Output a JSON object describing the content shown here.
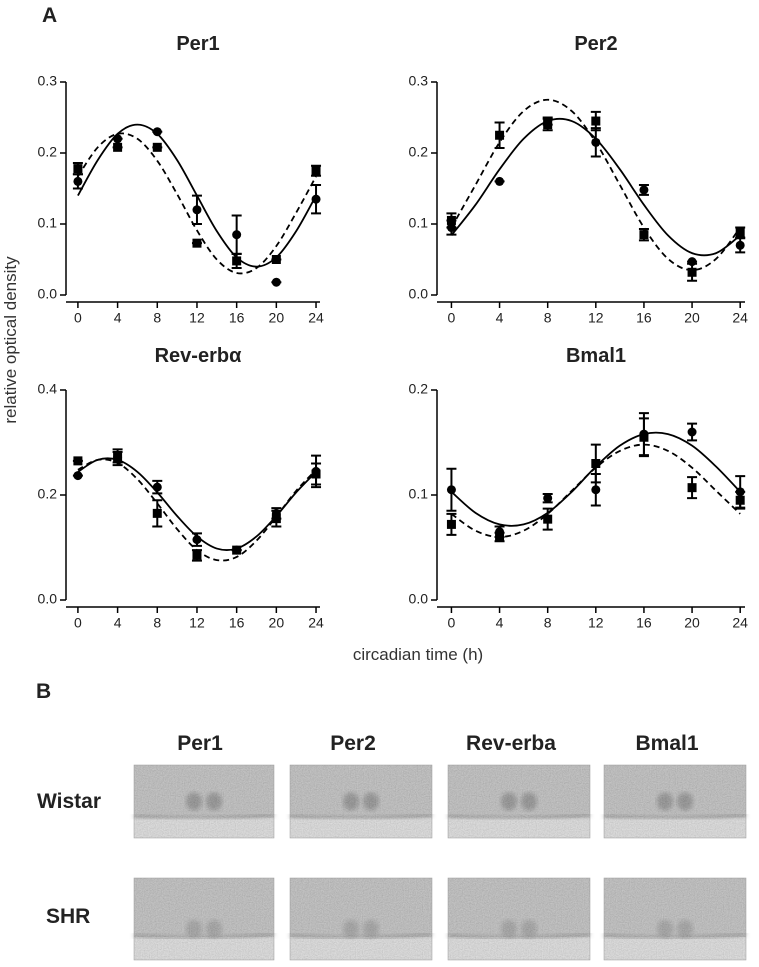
{
  "panel_a": {
    "label": "A",
    "ylabel": "relative optical density",
    "xlabel": "circadian time (h)"
  },
  "chart_data": [
    {
      "type": "scatter",
      "title": "Per1",
      "x": [
        0,
        4,
        8,
        12,
        16,
        20,
        24
      ],
      "xlim": [
        -1.2,
        24.4
      ],
      "xticks": [
        0,
        4,
        8,
        12,
        16,
        20,
        24
      ],
      "ylim": [
        0,
        0.3
      ],
      "yticks": [
        {
          "value": 0,
          "label": "0.0"
        },
        0.1,
        0.2,
        0.3
      ],
      "series": [
        {
          "marker": "circle",
          "color": "#000000",
          "values": [
            0.16,
            0.22,
            0.23,
            0.12,
            0.085,
            0.018,
            0.135
          ],
          "errors": [
            0.01,
            0,
            0,
            0.02,
            0.027,
            0,
            0.02
          ]
        },
        {
          "marker": "square",
          "color": "#000000",
          "values": [
            0.178,
            0.208,
            0.208,
            0.073,
            0.048,
            0.05,
            0.175
          ],
          "errors": [
            0.008,
            0,
            0,
            0,
            0.01,
            0,
            0.007
          ]
        }
      ],
      "fits": [
        {
          "dash": false,
          "color": "#000000",
          "x": [
            0,
            2,
            4,
            6,
            8,
            10,
            12,
            14,
            16,
            18,
            20,
            22,
            24
          ],
          "values": [
            0.14,
            0.19,
            0.227,
            0.24,
            0.227,
            0.19,
            0.14,
            0.09,
            0.053,
            0.04,
            0.053,
            0.09,
            0.14
          ]
        },
        {
          "dash": true,
          "color": "#000000",
          "x": [
            0,
            2,
            4,
            6,
            8,
            10,
            12,
            14,
            16,
            18,
            20,
            22,
            24
          ],
          "values": [
            0.167,
            0.208,
            0.227,
            0.22,
            0.189,
            0.142,
            0.091,
            0.05,
            0.031,
            0.038,
            0.069,
            0.116,
            0.167
          ]
        }
      ]
    },
    {
      "type": "scatter",
      "title": "Per2",
      "x": [
        0,
        4,
        8,
        12,
        16,
        20,
        24
      ],
      "xlim": [
        -1.2,
        24.4
      ],
      "xticks": [
        0,
        4,
        8,
        12,
        16,
        20,
        24
      ],
      "ylim": [
        0,
        0.3
      ],
      "yticks": [
        {
          "value": 0,
          "label": "0.0"
        },
        0.1,
        0.2,
        0.3
      ],
      "series": [
        {
          "marker": "circle",
          "color": "#000000",
          "values": [
            0.095,
            0.16,
            0.245,
            0.215,
            0.148,
            0.047,
            0.07
          ],
          "errors": [
            0.01,
            0,
            0.005,
            0.02,
            0.007,
            0,
            0.01
          ]
        },
        {
          "marker": "square",
          "color": "#000000",
          "values": [
            0.105,
            0.225,
            0.24,
            0.245,
            0.085,
            0.032,
            0.088
          ],
          "errors": [
            0.01,
            0.018,
            0.008,
            0.013,
            0.008,
            0.012,
            0.007
          ]
        }
      ],
      "fits": [
        {
          "dash": false,
          "color": "#000000",
          "x": [
            0,
            2,
            4,
            6,
            8,
            10,
            12,
            14,
            16,
            18,
            20,
            22,
            24
          ],
          "values": [
            0.084,
            0.127,
            0.177,
            0.22,
            0.245,
            0.245,
            0.22,
            0.177,
            0.127,
            0.084,
            0.059,
            0.059,
            0.084
          ]
        },
        {
          "dash": true,
          "color": "#000000",
          "x": [
            0,
            2,
            4,
            6,
            8,
            10,
            12,
            14,
            16,
            18,
            20,
            22,
            24
          ],
          "values": [
            0.095,
            0.155,
            0.215,
            0.259,
            0.275,
            0.259,
            0.215,
            0.155,
            0.095,
            0.051,
            0.035,
            0.051,
            0.095
          ]
        }
      ]
    },
    {
      "type": "scatter",
      "title": "Rev-erbα",
      "x": [
        0,
        4,
        8,
        12,
        16,
        20,
        24
      ],
      "xlim": [
        -1.2,
        24.4
      ],
      "xticks": [
        0,
        4,
        8,
        12,
        16,
        20,
        24
      ],
      "ylim": [
        0,
        0.4
      ],
      "yticks": [
        {
          "value": 0,
          "label": "0.0"
        },
        0.2,
        0.4
      ],
      "series": [
        {
          "marker": "circle",
          "color": "#000000",
          "values": [
            0.237,
            0.272,
            0.215,
            0.115,
            0.095,
            0.165,
            0.245
          ],
          "errors": [
            0,
            0.015,
            0.012,
            0.012,
            0,
            0.01,
            0.03
          ]
        },
        {
          "marker": "square",
          "color": "#000000",
          "values": [
            0.265,
            0.272,
            0.165,
            0.085,
            0.095,
            0.155,
            0.24
          ],
          "errors": [
            0,
            0.01,
            0.025,
            0.01,
            0,
            0.015,
            0.02
          ]
        }
      ],
      "fits": [
        {
          "dash": false,
          "color": "#000000",
          "x": [
            0,
            2,
            4,
            6,
            8,
            10,
            12,
            14,
            16,
            18,
            20,
            22,
            24
          ],
          "values": [
            0.244,
            0.267,
            0.267,
            0.244,
            0.205,
            0.16,
            0.121,
            0.098,
            0.098,
            0.121,
            0.16,
            0.205,
            0.244
          ]
        },
        {
          "dash": true,
          "color": "#000000",
          "x": [
            0,
            2,
            4,
            6,
            8,
            10,
            12,
            14,
            16,
            18,
            20,
            22,
            24
          ],
          "values": [
            0.248,
            0.267,
            0.261,
            0.23,
            0.184,
            0.135,
            0.095,
            0.076,
            0.082,
            0.113,
            0.159,
            0.208,
            0.248
          ]
        }
      ]
    },
    {
      "type": "scatter",
      "title": "Bmal1",
      "x": [
        0,
        4,
        8,
        12,
        16,
        20,
        24
      ],
      "xlim": [
        -1.2,
        24.4
      ],
      "xticks": [
        0,
        4,
        8,
        12,
        16,
        20,
        24
      ],
      "ylim": [
        0,
        0.2
      ],
      "yticks": [
        {
          "value": 0,
          "label": "0.0"
        },
        0.1,
        0.2
      ],
      "series": [
        {
          "marker": "circle",
          "color": "#000000",
          "values": [
            0.105,
            0.065,
            0.097,
            0.105,
            0.158,
            0.16,
            0.103
          ],
          "errors": [
            0.02,
            0.005,
            0.004,
            0.015,
            0.02,
            0.008,
            0.015
          ]
        },
        {
          "marker": "square",
          "color": "#000000",
          "values": [
            0.072,
            0.06,
            0.077,
            0.13,
            0.155,
            0.107,
            0.095
          ],
          "errors": [
            0.01,
            0.004,
            0.01,
            0.018,
            0.018,
            0.01,
            0.008
          ]
        }
      ],
      "fits": [
        {
          "dash": false,
          "color": "#000000",
          "x": [
            0,
            2,
            4,
            6,
            8,
            10,
            12,
            14,
            16,
            18,
            20,
            22,
            24
          ],
          "values": [
            0.103,
            0.083,
            0.072,
            0.072,
            0.083,
            0.103,
            0.127,
            0.147,
            0.158,
            0.158,
            0.147,
            0.127,
            0.103
          ]
        },
        {
          "dash": true,
          "color": "#000000",
          "x": [
            0,
            2,
            4,
            6,
            8,
            10,
            12,
            14,
            16,
            18,
            20,
            22,
            24
          ],
          "values": [
            0.082,
            0.066,
            0.06,
            0.066,
            0.082,
            0.104,
            0.126,
            0.142,
            0.148,
            0.142,
            0.126,
            0.104,
            0.082
          ]
        }
      ]
    }
  ],
  "panel_b": {
    "label": "B",
    "columns": [
      "Per1",
      "Per2",
      "Rev-erba",
      "Bmal1"
    ],
    "rows": [
      "Wistar",
      "SHR"
    ]
  }
}
